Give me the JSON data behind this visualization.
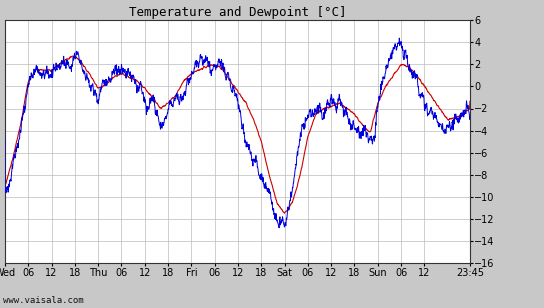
{
  "title": "Temperature and Dewpoint [°C]",
  "ylim": [
    -16,
    6
  ],
  "yticks": [
    -16,
    -14,
    -12,
    -10,
    -8,
    -6,
    -4,
    -2,
    0,
    2,
    4,
    6
  ],
  "xtick_labels": [
    "Wed",
    "06",
    "12",
    "18",
    "Thu",
    "06",
    "12",
    "18",
    "Fri",
    "06",
    "12",
    "18",
    "Sat",
    "06",
    "12",
    "18",
    "Sun",
    "06",
    "12",
    "23:45"
  ],
  "xtick_hours": [
    0,
    6,
    12,
    18,
    24,
    30,
    36,
    42,
    48,
    54,
    60,
    66,
    72,
    78,
    84,
    90,
    96,
    102,
    108,
    119.75
  ],
  "total_hours": 119.75,
  "bg_color": "#c8c8c8",
  "plot_bg_color": "#ffffff",
  "grid_color": "#bbbbbb",
  "temp_color": "#0000dd",
  "dewpoint_color": "#cc0000",
  "watermark": "www.vaisala.com",
  "title_fontsize": 9,
  "tick_fontsize": 7,
  "temp_keypoints_h": [
    0,
    2,
    4,
    5,
    6,
    7,
    8,
    9,
    10,
    11,
    12,
    13,
    14,
    15,
    16,
    17,
    18,
    19,
    20,
    21,
    22,
    23,
    24,
    25,
    26,
    27,
    28,
    29,
    30,
    31,
    32,
    33,
    34,
    35,
    36,
    37,
    38,
    39,
    40,
    41,
    42,
    43,
    44,
    45,
    46,
    47,
    48,
    49,
    50,
    51,
    52,
    53,
    54,
    55,
    56,
    57,
    58,
    59,
    60,
    61,
    62,
    63,
    64,
    65,
    66,
    67,
    68,
    69,
    70,
    71,
    72,
    73,
    74,
    75,
    76,
    77,
    78,
    79,
    80,
    81,
    82,
    83,
    84,
    85,
    86,
    87,
    88,
    89,
    90,
    91,
    92,
    93,
    94,
    95,
    96,
    97,
    98,
    99,
    100,
    101,
    102,
    103,
    104,
    105,
    106,
    107,
    108,
    109,
    110,
    111,
    112,
    113,
    114,
    115,
    116,
    117,
    118,
    119,
    119.75
  ],
  "temp_keypoints_v": [
    -9.5,
    -7,
    -4,
    -2,
    0.5,
    1.2,
    1.5,
    1.3,
    1.0,
    1.2,
    1.0,
    1.5,
    1.8,
    2.2,
    2.3,
    2.0,
    2.5,
    1.8,
    1.2,
    0.8,
    0.2,
    -0.2,
    -0.5,
    0.0,
    0.3,
    0.8,
    1.2,
    1.0,
    1.5,
    1.2,
    1.0,
    0.8,
    0.2,
    -0.5,
    -1.2,
    -2.0,
    -1.5,
    -2.5,
    -3.5,
    -2.8,
    -2.5,
    -2.0,
    -1.8,
    -1.5,
    -1.2,
    1.0,
    1.5,
    1.8,
    2.0,
    2.3,
    2.5,
    2.2,
    1.8,
    2.0,
    1.5,
    1.0,
    0.5,
    -0.5,
    -1.5,
    -3.0,
    -4.5,
    -5.5,
    -6.5,
    -7.5,
    -8.5,
    -9.0,
    -9.5,
    -10.5,
    -11.5,
    -11.8,
    -12.5,
    -11.5,
    -9.5,
    -7.0,
    -5.0,
    -3.5,
    -2.5,
    -2.8,
    -2.5,
    -2.0,
    -2.2,
    -1.8,
    -1.5,
    -2.0,
    -1.8,
    -2.0,
    -2.5,
    -3.0,
    -3.8,
    -4.0,
    -4.2,
    -4.5,
    -4.8,
    -5.0,
    -2.0,
    0.0,
    1.5,
    2.5,
    3.2,
    3.3,
    3.0,
    2.5,
    2.0,
    1.5,
    0.8,
    0.0,
    -0.8,
    -1.5,
    -2.0,
    -2.8,
    -3.2,
    -3.5,
    -3.8,
    -3.5,
    -3.2,
    -3.0,
    -2.8,
    -2.5,
    -2.2
  ],
  "dew_keypoints_h": [
    0,
    2,
    4,
    5,
    6,
    7,
    8,
    10,
    12,
    14,
    16,
    18,
    20,
    22,
    24,
    26,
    28,
    30,
    32,
    34,
    36,
    38,
    40,
    42,
    44,
    46,
    48,
    50,
    52,
    54,
    56,
    58,
    60,
    62,
    64,
    66,
    68,
    70,
    72,
    74,
    76,
    78,
    80,
    82,
    84,
    86,
    88,
    90,
    92,
    94,
    96,
    98,
    100,
    102,
    104,
    106,
    108,
    110,
    112,
    114,
    116,
    118,
    119.75
  ],
  "dew_keypoints_v": [
    -9.0,
    -6.5,
    -3.5,
    -1.5,
    0.5,
    1.0,
    1.5,
    1.5,
    1.5,
    2.0,
    2.5,
    2.8,
    2.0,
    1.0,
    -0.2,
    0.2,
    0.8,
    1.2,
    0.8,
    0.5,
    -0.2,
    -1.0,
    -2.0,
    -1.5,
    -0.8,
    0.5,
    1.2,
    1.5,
    1.8,
    2.0,
    1.5,
    0.5,
    -0.5,
    -1.5,
    -3.0,
    -5.0,
    -8.0,
    -10.5,
    -11.5,
    -10.5,
    -8.0,
    -4.5,
    -2.5,
    -2.0,
    -1.8,
    -1.5,
    -2.0,
    -2.5,
    -3.5,
    -4.2,
    -1.5,
    0.0,
    1.0,
    2.0,
    1.8,
    1.0,
    0.0,
    -1.0,
    -2.0,
    -3.0,
    -2.8,
    -2.5,
    -2.0
  ]
}
